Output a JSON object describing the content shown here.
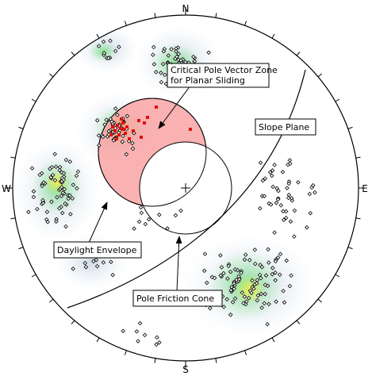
{
  "compass": {
    "north": "N",
    "south": "S",
    "east": "E",
    "west": "W"
  },
  "callouts": {
    "critical_zone": [
      "Critical Pole Vector Zone",
      "for Planar Sliding"
    ],
    "slope_plane": "Slope Plane",
    "daylight_envelope": "Daylight Envelope",
    "pole_friction_cone": "Pole Friction Cone"
  },
  "colors": {
    "critical_zone_fill": "#f9a3a3",
    "critical_pole": "#e01010",
    "density_low": "#dde6ee",
    "density_mid": "#7fe08a",
    "density_high": "#f0f05a",
    "density_peak": "#ff3a00"
  }
}
